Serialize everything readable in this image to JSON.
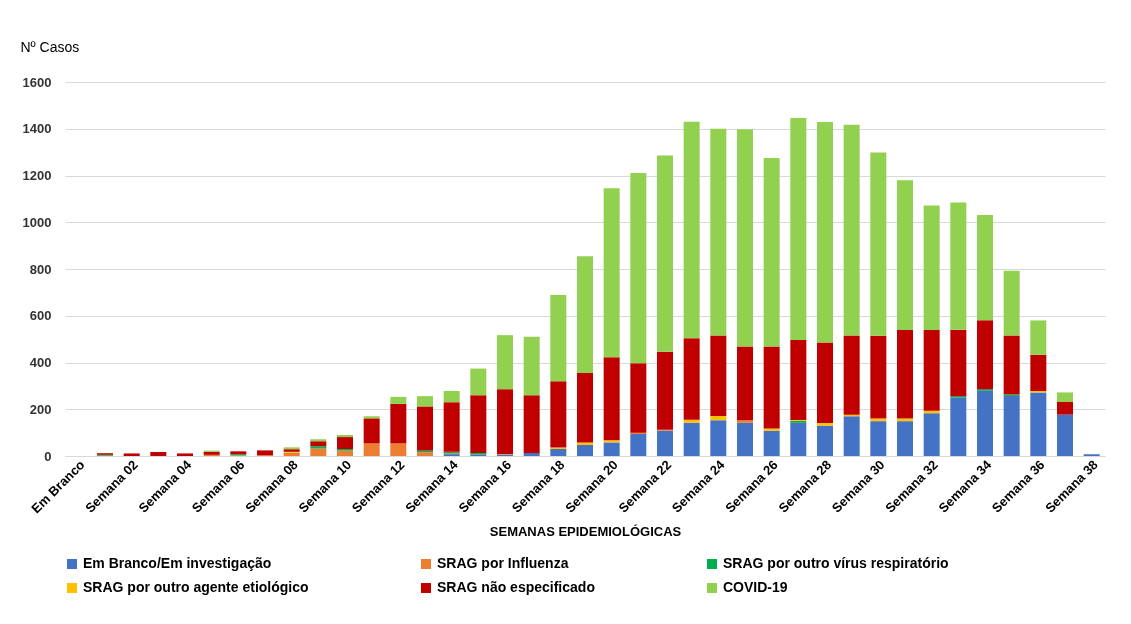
{
  "chart_data": {
    "type": "bar",
    "stacked": true,
    "xlabel": "SEMANAS EPIDEMIOLÓGICAS",
    "ylabel": "Nº Casos",
    "categories": [
      "Em Branco",
      null,
      "Semana 02",
      null,
      "Semana 04",
      null,
      "Semana 06",
      null,
      "Semana 08",
      null,
      "Semana 10",
      null,
      "Semana 12",
      null,
      "Semana 14",
      null,
      "Semana 16",
      null,
      "Semana 18",
      null,
      "Semana 20",
      null,
      "Semana 22",
      null,
      "Semana 24",
      null,
      "Semana 26",
      null,
      "Semana 28",
      null,
      "Semana 30",
      null,
      "Semana 32",
      null,
      "Semana 34",
      null,
      "Semana 36",
      null,
      "Semana 38"
    ],
    "series": [
      {
        "name": "Em Branco/Em investigação",
        "color": "#4472c4",
        "values": [
          0,
          0,
          0,
          0,
          0,
          0,
          0,
          0,
          0,
          0,
          0,
          0,
          0,
          0,
          8,
          6,
          6,
          13,
          30,
          47,
          58,
          94,
          108,
          142,
          153,
          142,
          108,
          142,
          130,
          170,
          149,
          149,
          183,
          250,
          279,
          257,
          272,
          177,
          7
        ]
      },
      {
        "name": "SRAG por Influenza",
        "color": "#ed7d31",
        "values": [
          0,
          1,
          0,
          null,
          0,
          5,
          3,
          3,
          14,
          32,
          23,
          54,
          54,
          16,
          4,
          0,
          3,
          0,
          0,
          0,
          0,
          6,
          4,
          0,
          0,
          11,
          0,
          0,
          0,
          0,
          0,
          0,
          0,
          0,
          0,
          0,
          0,
          0,
          0
        ]
      },
      {
        "name": "SRAG por outro vírus respiratório",
        "color": "#00b050",
        "values": [
          0,
          4,
          0,
          0,
          0,
          0,
          5,
          0,
          0,
          10,
          7,
          null,
          null,
          7,
          6,
          7,
          0,
          0,
          0,
          0,
          0,
          0,
          0,
          0,
          0,
          0,
          0,
          8,
          0,
          0,
          0,
          0,
          0,
          6,
          7,
          6,
          0,
          0,
          0
        ]
      },
      {
        "name": "SRAG por outro agente etiológico",
        "color": "#ffc000",
        "values": [
          0,
          0,
          0,
          0,
          0,
          0,
          0,
          0,
          4,
          0,
          0,
          0,
          0,
          0,
          0,
          0,
          0,
          0,
          6,
          11,
          9,
          0,
          0,
          13,
          18,
          0,
          10,
          4,
          11,
          6,
          11,
          11,
          11,
          0,
          0,
          0,
          6,
          0,
          0
        ]
      },
      {
        "name": "SRAG não especificado",
        "color": "#c00000",
        "values": [
          0,
          7,
          11,
          17,
          11,
          13,
          12,
          21,
          11,
          21,
          51,
          107,
          169,
          189,
          212,
          247,
          277,
          247,
          284,
          297,
          355,
          297,
          334,
          349,
          344,
          315,
          350,
          342,
          345,
          339,
          354,
          379,
          345,
          284,
          295,
          252,
          155,
          54,
          0
        ]
      },
      {
        "name": "COVID-19",
        "color": "#92d050",
        "values": [
          0,
          0,
          0,
          0,
          0,
          5,
          0,
          0,
          8,
          9,
          9,
          9,
          30,
          44,
          48,
          114,
          231,
          250,
          369,
          500,
          723,
          814,
          840,
          926,
          885,
          930,
          807,
          950,
          943,
          902,
          784,
          641,
          533,
          545,
          450,
          278,
          147,
          41,
          0
        ]
      }
    ],
    "ylim": [
      0,
      1600
    ],
    "yticks": [
      0,
      200,
      400,
      600,
      800,
      1000,
      1200,
      1400,
      1600
    ],
    "grid": "y",
    "legend": "bottom"
  }
}
